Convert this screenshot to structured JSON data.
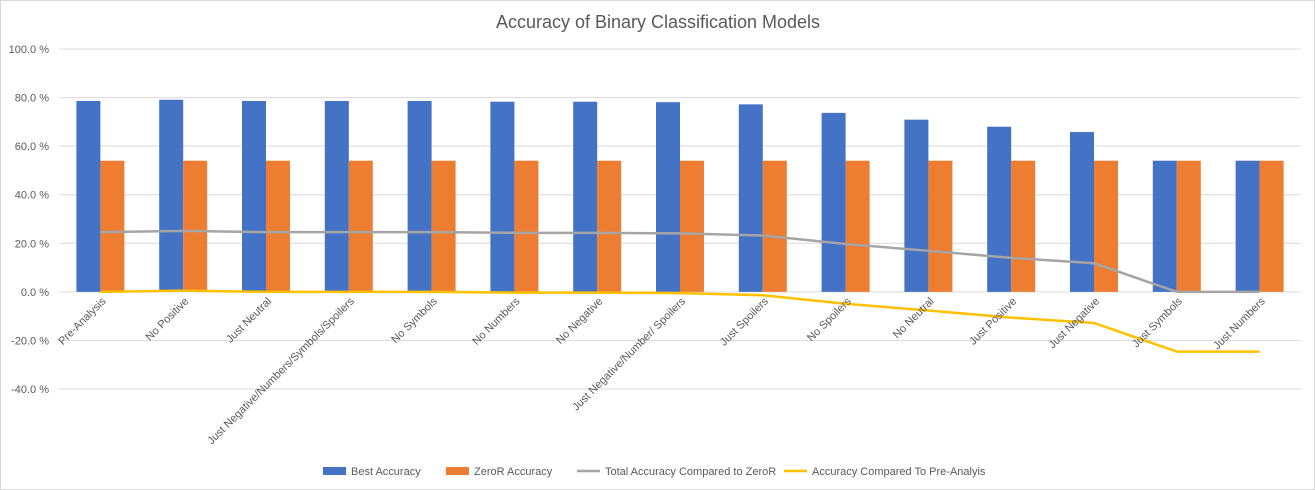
{
  "chart_data": {
    "type": "bar",
    "title": "Accuracy of Binary Classification Models",
    "xlabel": "",
    "ylabel": "",
    "ylim": [
      -40,
      100
    ],
    "y_ticks": [
      "-40.0 %",
      "-20.0 %",
      "0.0 %",
      "20.0 %",
      "40.0 %",
      "60.0 %",
      "80.0 %",
      "100.0 %"
    ],
    "y_tick_values": [
      -40,
      -20,
      0,
      20,
      40,
      60,
      80,
      100
    ],
    "grid": true,
    "legend_position": "bottom",
    "categories": [
      "Pre-Analysis",
      "No Positive",
      "Just Neutral",
      "Just Negative/Numbers/Symbols/Spoilers",
      "No Symbols",
      "No Numbers",
      "No Negative",
      "Just Negative/Number/ Spoilers",
      "Just Spoilers",
      "No Spoilers",
      "No Neutral",
      "Just Positive",
      "Just Negative",
      "Just Symbols",
      "Just Numbers"
    ],
    "series": [
      {
        "name": "Best Accuracy",
        "kind": "bar",
        "color": "#4472c4",
        "values": [
          78.6,
          79.1,
          78.6,
          78.6,
          78.6,
          78.3,
          78.3,
          78.1,
          77.2,
          73.7,
          70.9,
          68.0,
          65.8,
          54.0,
          54.0
        ]
      },
      {
        "name": "ZeroR Accuracy",
        "kind": "bar",
        "color": "#ed7d31",
        "values": [
          54.0,
          54.0,
          54.0,
          54.0,
          54.0,
          54.0,
          54.0,
          54.0,
          54.0,
          54.0,
          54.0,
          54.0,
          54.0,
          54.0,
          54.0
        ]
      },
      {
        "name": "Total Accuracy Compared to ZeroR",
        "kind": "line",
        "color": "#a5a5a5",
        "values": [
          24.6,
          25.1,
          24.6,
          24.6,
          24.6,
          24.3,
          24.3,
          24.1,
          23.2,
          19.7,
          16.9,
          14.0,
          11.8,
          0.0,
          0.0
        ]
      },
      {
        "name": "Accuracy Compared To Pre-Analyis",
        "kind": "line",
        "color": "#ffc000",
        "values": [
          0.0,
          0.5,
          0.0,
          0.0,
          0.0,
          -0.3,
          -0.3,
          -0.5,
          -1.4,
          -4.9,
          -7.7,
          -10.6,
          -12.8,
          -24.6,
          -24.6
        ]
      }
    ]
  }
}
